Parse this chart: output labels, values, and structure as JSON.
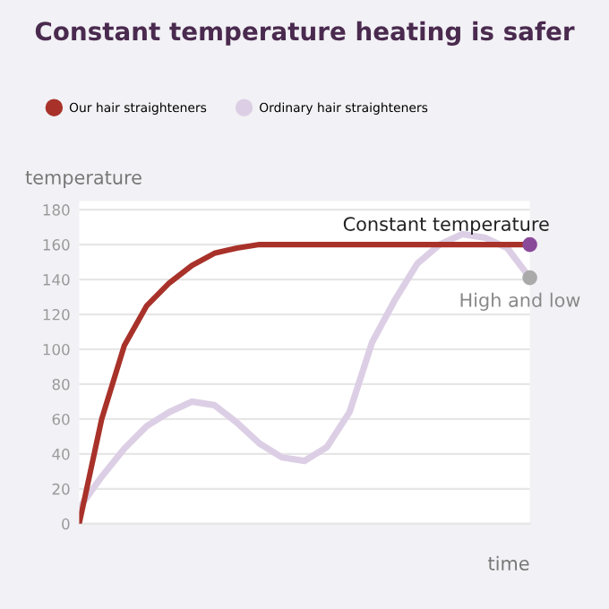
{
  "chart_data": {
    "type": "line",
    "title": "Constant temperature heating is safer",
    "xlabel": "time",
    "ylabel": "temperature",
    "ylim": [
      0,
      185
    ],
    "yticks": [
      0,
      20,
      40,
      60,
      80,
      100,
      120,
      140,
      160,
      180
    ],
    "categories": [
      null,
      null,
      null,
      null,
      null,
      null,
      null,
      null,
      null,
      null,
      null,
      null,
      null,
      null,
      null,
      null,
      null,
      null,
      null,
      null,
      null
    ],
    "tick_labels": "y",
    "grid": "y",
    "legend": "top left",
    "line_style": "solid",
    "marker": "none",
    "series": [
      {
        "name": "Our hair straighteners",
        "color": "#a8322a",
        "values": [
          0,
          60,
          102,
          125,
          138,
          148,
          155,
          158,
          160,
          160,
          160,
          160,
          160,
          160,
          160,
          160,
          160,
          160,
          160,
          160,
          160
        ]
      },
      {
        "name": "Ordinary hair straighteners",
        "color": "#dccfe5",
        "values": [
          9,
          27,
          43,
          56,
          64,
          70,
          68,
          58,
          46,
          38,
          36,
          44,
          64,
          104,
          128,
          149,
          160,
          166,
          164,
          158,
          141
        ]
      }
    ],
    "annotations": [
      {
        "text": "Constant temperature",
        "y": 160
      },
      {
        "text": "High and low",
        "y": 141
      }
    ]
  }
}
